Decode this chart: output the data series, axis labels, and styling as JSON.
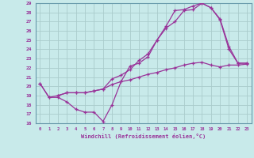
{
  "xlabel": "Windchill (Refroidissement éolien,°C)",
  "bg_color": "#c8eaea",
  "line_color": "#993399",
  "grid_color": "#aacccc",
  "spine_color": "#6699aa",
  "xlim": [
    -0.5,
    23.5
  ],
  "ylim": [
    16,
    29
  ],
  "xticks": [
    0,
    1,
    2,
    3,
    4,
    5,
    6,
    7,
    8,
    9,
    10,
    11,
    12,
    13,
    14,
    15,
    16,
    17,
    18,
    19,
    20,
    21,
    22,
    23
  ],
  "yticks": [
    16,
    17,
    18,
    19,
    20,
    21,
    22,
    23,
    24,
    25,
    26,
    27,
    28,
    29
  ],
  "line1_x": [
    0,
    1,
    2,
    3,
    4,
    5,
    6,
    7,
    8,
    9,
    10,
    11,
    12,
    13,
    14,
    15,
    16,
    17,
    18,
    19,
    20,
    21,
    22,
    23
  ],
  "line1_y": [
    20.3,
    18.8,
    18.8,
    18.3,
    17.5,
    17.2,
    17.2,
    16.2,
    18.0,
    20.5,
    22.2,
    22.5,
    23.2,
    25.0,
    26.3,
    27.0,
    28.2,
    28.3,
    29.0,
    28.5,
    27.3,
    24.3,
    22.5,
    22.5
  ],
  "line2_x": [
    0,
    1,
    2,
    3,
    4,
    5,
    6,
    7,
    8,
    9,
    10,
    11,
    12,
    13,
    14,
    15,
    16,
    17,
    18,
    19,
    20,
    21,
    22,
    23
  ],
  "line2_y": [
    20.3,
    18.8,
    19.0,
    19.3,
    19.3,
    19.3,
    19.5,
    19.7,
    20.2,
    20.5,
    20.7,
    21.0,
    21.3,
    21.5,
    21.8,
    22.0,
    22.3,
    22.5,
    22.6,
    22.3,
    22.1,
    22.3,
    22.3,
    22.4
  ],
  "line3_x": [
    2,
    3,
    4,
    5,
    6,
    7,
    8,
    9,
    10,
    11,
    12,
    13,
    14,
    15,
    16,
    17,
    18,
    19,
    20,
    21,
    22,
    23
  ],
  "line3_y": [
    19.0,
    19.3,
    19.3,
    19.3,
    19.5,
    19.7,
    20.8,
    21.2,
    21.8,
    22.8,
    23.5,
    25.0,
    26.5,
    28.2,
    28.3,
    28.7,
    29.0,
    28.5,
    27.2,
    24.0,
    22.5,
    22.5
  ]
}
